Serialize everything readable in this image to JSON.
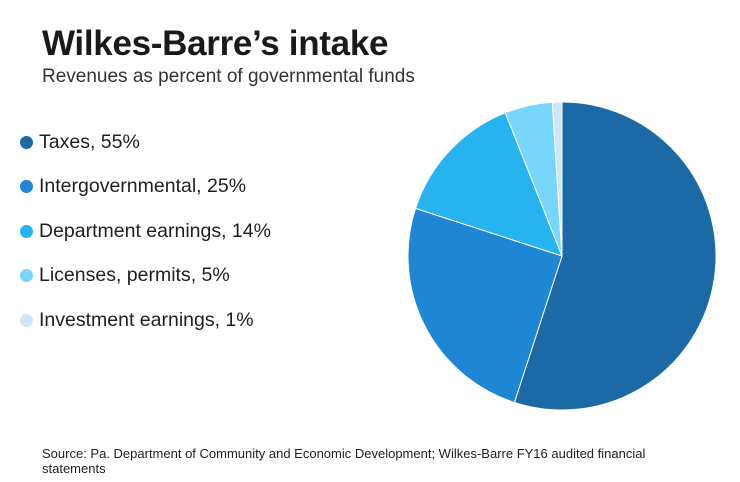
{
  "title": "Wilkes-Barre’s intake",
  "subtitle": "Revenues as percent of governmental funds",
  "source": "Source: Pa. Department of Community and Economic Development; Wilkes-Barre FY16 audited financial statements",
  "legend": [
    {
      "label": "Taxes, 55%",
      "color": "#1b6aa5"
    },
    {
      "label": "Intergovernmental, 25%",
      "color": "#1f86d3"
    },
    {
      "label": "Department earnings, 14%",
      "color": "#26b3ef"
    },
    {
      "label": "Licenses, permits, 5%",
      "color": "#79d6fb"
    },
    {
      "label": "Investment earnings, 1%",
      "color": "#cfe6f8"
    }
  ],
  "chart_data": {
    "type": "pie",
    "title": "Wilkes-Barre’s intake",
    "subtitle": "Revenues as percent of governmental funds",
    "legend_position": "left",
    "categories": [
      "Taxes",
      "Intergovernmental",
      "Department earnings",
      "Licenses, permits",
      "Investment earnings"
    ],
    "values": [
      55,
      25,
      14,
      5,
      1
    ],
    "colors": [
      "#1b6aa5",
      "#1f86d3",
      "#26b3ef",
      "#79d6fb",
      "#cfe6f8"
    ]
  }
}
